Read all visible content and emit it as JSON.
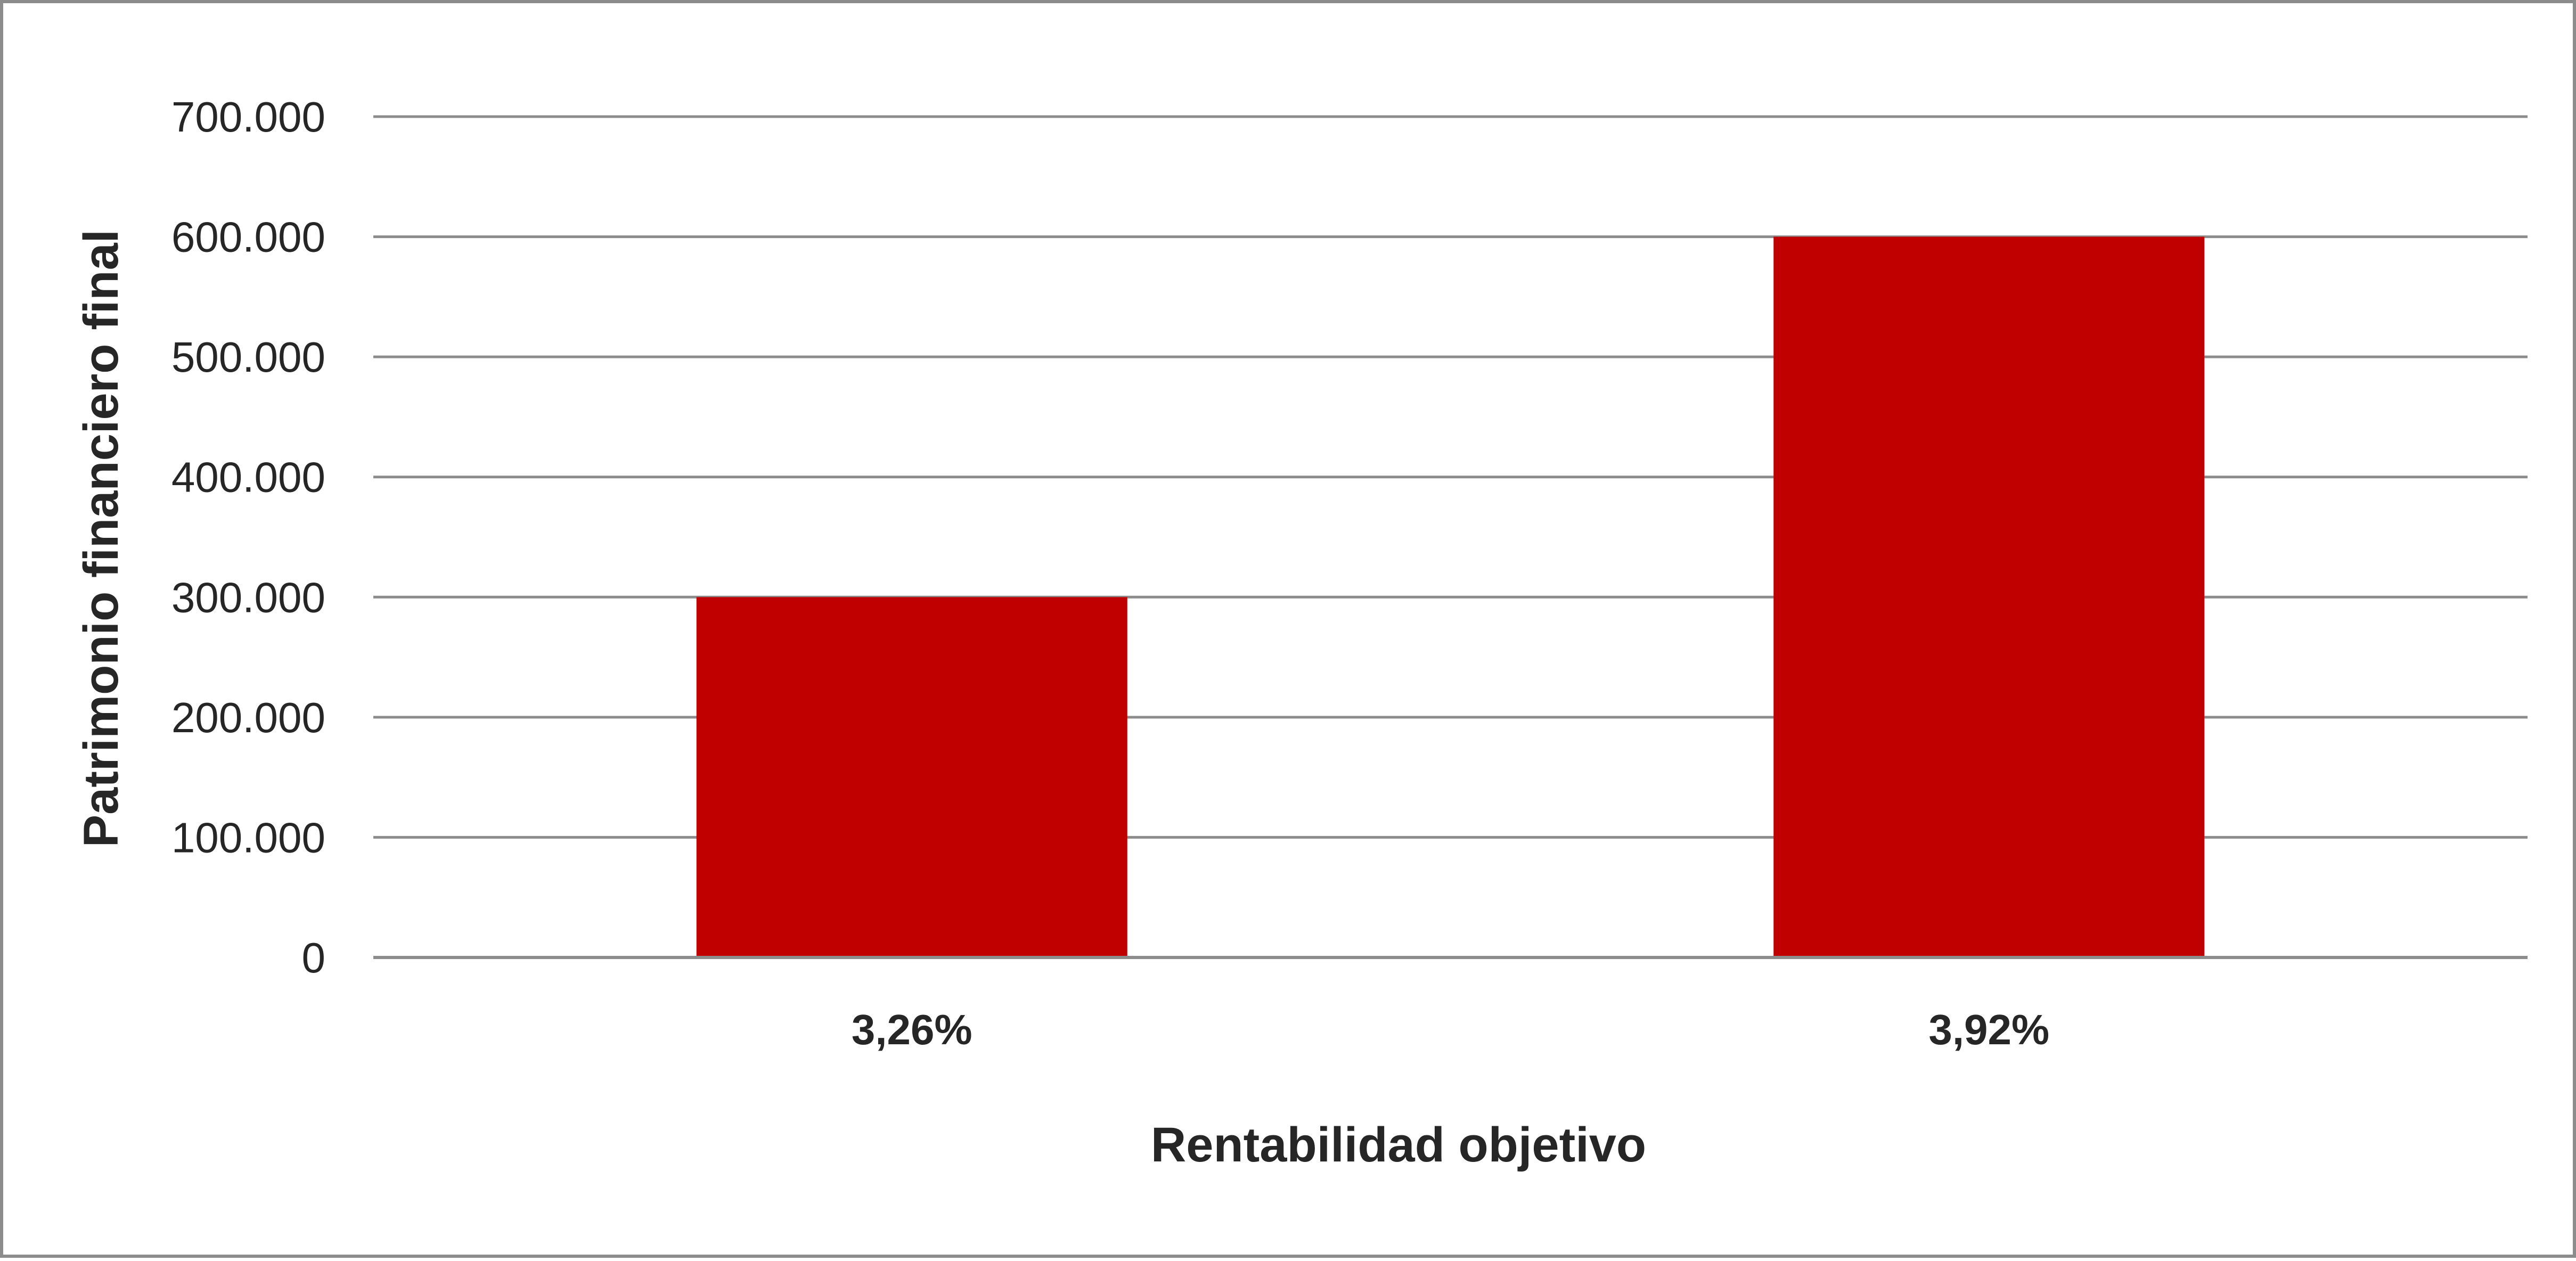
{
  "chart_data": {
    "type": "bar",
    "categories": [
      "3,26%",
      "3,92%"
    ],
    "values": [
      300000,
      600000
    ],
    "xlabel": "Rentabilidad objetivo",
    "ylabel": "Patrimonio financiero final",
    "ylim": [
      0,
      700000
    ],
    "yticks": [
      0,
      100000,
      200000,
      300000,
      400000,
      500000,
      600000,
      700000
    ],
    "ytick_labels": [
      "0",
      "100.000",
      "200.000",
      "300.000",
      "400.000",
      "500.000",
      "600.000",
      "700.000"
    ],
    "grid": true,
    "legend": false,
    "colors": {
      "bar": "#C00000",
      "grid": "#8c8c8c",
      "text": "#262626",
      "border": "#8c8c8c"
    }
  }
}
